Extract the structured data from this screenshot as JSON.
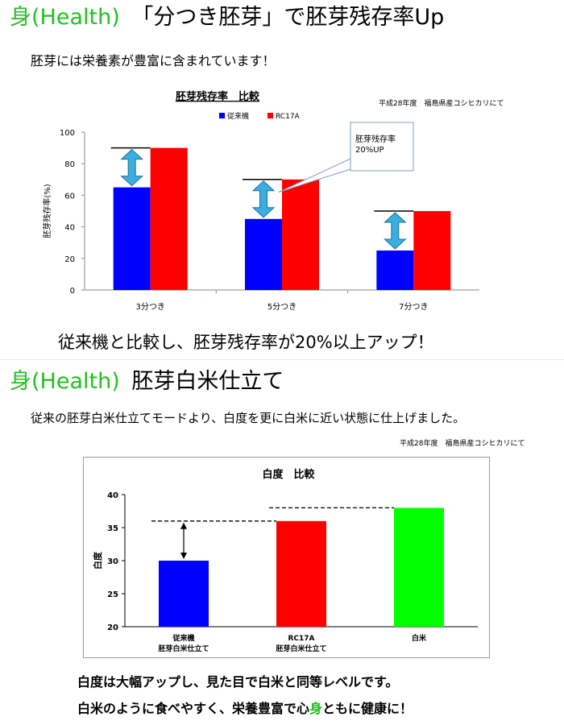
{
  "section1": {
    "title_prefix": "身(Health)",
    "title_rest": "「分つき胚芽」で胚芽残存率Up",
    "subtitle": "胚芽には栄養素が豊富に含まれています！",
    "source_note": "平成28年度　福島県産コシヒカリにて",
    "conclusion": "従来機と比較し、胚芽残存率が20%以上アップ！"
  },
  "section2": {
    "title_prefix": "身(Health)",
    "title_rest": "胚芽白米仕立て",
    "subtitle": "従来の胚芽白米仕立てモードより、白度を更に白米に近い状態に仕上げました。",
    "source_note": "平成28年度　福島県産コシヒカリにて",
    "conclusion_line1": "白度は大幅アップし、見た目で白米と同等レベルです。",
    "conclusion_line2_a": "白米のように食べやすく、栄養豊富で心",
    "conclusion_line2_b": "身",
    "conclusion_line2_c": "ともに健康に！"
  },
  "chart_data": [
    {
      "type": "bar",
      "title": "胚芽残存率　比較",
      "ylabel": "胚芽残存率(%)",
      "xlabel": "",
      "categories": [
        "3分つき",
        "5分つき",
        "7分つき"
      ],
      "series": [
        {
          "name": "従来機",
          "values": [
            65,
            45,
            25
          ],
          "color": "#0000ff"
        },
        {
          "name": "RC17A",
          "values": [
            90,
            70,
            50
          ],
          "color": "#ff0000"
        }
      ],
      "ylim": [
        0,
        100
      ],
      "yticks": [
        0,
        20,
        40,
        60,
        80,
        100
      ],
      "grid": false,
      "legend": "top",
      "callout": "胚芽残存率\n20%UP"
    },
    {
      "type": "bar",
      "title": "白度　比較",
      "ylabel": "白度",
      "xlabel": "",
      "categories": [
        "従来機\n胚芽白米仕立て",
        "RC17A\n胚芽白米仕立て",
        "白米"
      ],
      "values": [
        30,
        36,
        38
      ],
      "colors": [
        "#0000ff",
        "#ff0000",
        "#00ff00"
      ],
      "ylim": [
        20,
        40
      ],
      "yticks": [
        20,
        25,
        30,
        35,
        40
      ],
      "grid": false
    }
  ]
}
